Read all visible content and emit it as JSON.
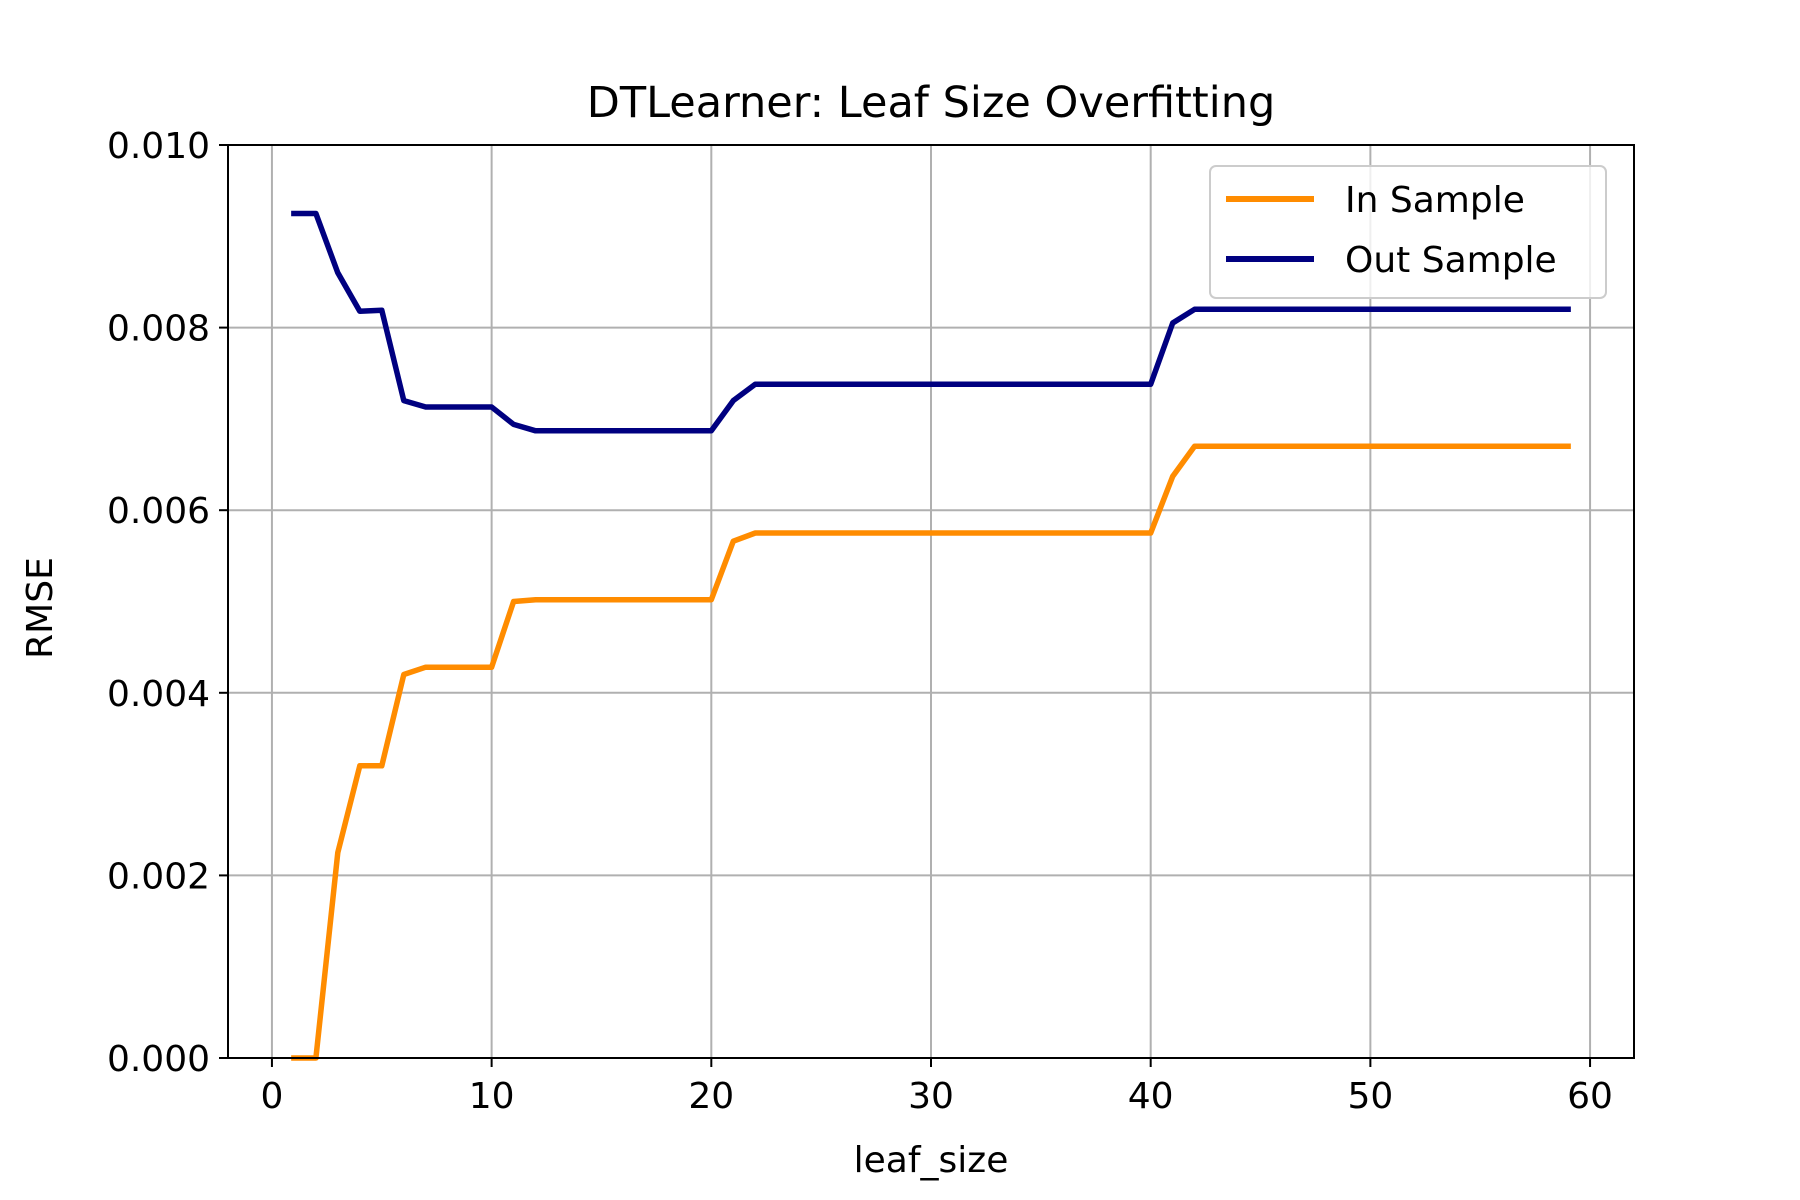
{
  "chart_data": {
    "type": "line",
    "title": "DTLearner: Leaf Size Overfitting",
    "xlabel": "leaf_size",
    "ylabel": "RMSE",
    "xlim": [
      -2,
      62
    ],
    "ylim": [
      0,
      0.01
    ],
    "xticks": [
      0,
      10,
      20,
      30,
      40,
      50,
      60
    ],
    "xtick_labels": [
      "0",
      "10",
      "20",
      "30",
      "40",
      "50",
      "60"
    ],
    "yticks": [
      0,
      0.002,
      0.004,
      0.006,
      0.008,
      0.01
    ],
    "ytick_labels": [
      "0.000",
      "0.002",
      "0.004",
      "0.006",
      "0.008",
      "0.010"
    ],
    "grid": true,
    "legend_position": "upper right",
    "x": [
      1,
      2,
      3,
      4,
      5,
      6,
      7,
      8,
      9,
      10,
      11,
      12,
      13,
      14,
      15,
      16,
      17,
      18,
      19,
      20,
      21,
      22,
      23,
      24,
      25,
      26,
      27,
      28,
      29,
      30,
      31,
      32,
      33,
      34,
      35,
      36,
      37,
      38,
      39,
      40,
      41,
      42,
      43,
      44,
      45,
      46,
      47,
      48,
      49,
      50,
      51,
      52,
      53,
      54,
      55,
      56,
      57,
      58,
      59
    ],
    "series": [
      {
        "name": "In Sample",
        "color": "#ff8c00",
        "values": [
          0.0,
          0.0,
          0.00225,
          0.0032,
          0.0032,
          0.0042,
          0.00428,
          0.00428,
          0.00428,
          0.00428,
          0.005,
          0.00502,
          0.00502,
          0.00502,
          0.00502,
          0.00502,
          0.00502,
          0.00502,
          0.00502,
          0.00502,
          0.00566,
          0.00575,
          0.00575,
          0.00575,
          0.00575,
          0.00575,
          0.00575,
          0.00575,
          0.00575,
          0.00575,
          0.00575,
          0.00575,
          0.00575,
          0.00575,
          0.00575,
          0.00575,
          0.00575,
          0.00575,
          0.00575,
          0.00575,
          0.00637,
          0.0067,
          0.0067,
          0.0067,
          0.0067,
          0.0067,
          0.0067,
          0.0067,
          0.0067,
          0.0067,
          0.0067,
          0.0067,
          0.0067,
          0.0067,
          0.0067,
          0.0067,
          0.0067,
          0.0067,
          0.0067
        ]
      },
      {
        "name": "Out Sample",
        "color": "#000080",
        "values": [
          0.00925,
          0.00925,
          0.0086,
          0.00818,
          0.00819,
          0.0072,
          0.00713,
          0.00713,
          0.00713,
          0.00713,
          0.00694,
          0.00687,
          0.00687,
          0.00687,
          0.00687,
          0.00687,
          0.00687,
          0.00687,
          0.00687,
          0.00687,
          0.0072,
          0.00738,
          0.00738,
          0.00738,
          0.00738,
          0.00738,
          0.00738,
          0.00738,
          0.00738,
          0.00738,
          0.00738,
          0.00738,
          0.00738,
          0.00738,
          0.00738,
          0.00738,
          0.00738,
          0.00738,
          0.00738,
          0.00738,
          0.00805,
          0.0082,
          0.0082,
          0.0082,
          0.0082,
          0.0082,
          0.0082,
          0.0082,
          0.0082,
          0.0082,
          0.0082,
          0.0082,
          0.0082,
          0.0082,
          0.0082,
          0.0082,
          0.0082,
          0.0082,
          0.0082
        ]
      }
    ]
  }
}
